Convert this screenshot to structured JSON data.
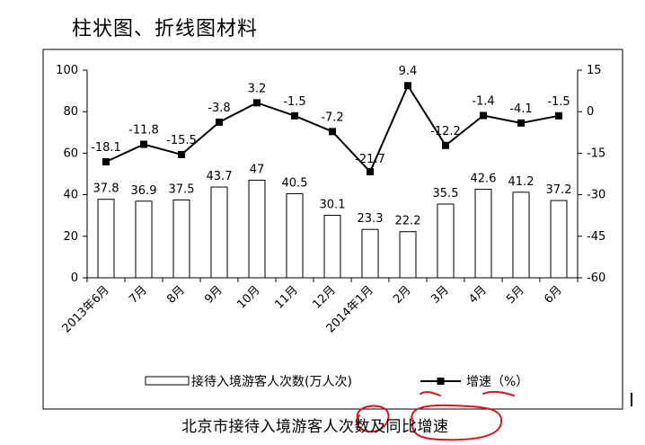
{
  "heading": "柱状图、折线图材料",
  "caption": "北京市接待入境游客人次数及同比增速",
  "chart_data": {
    "type": "bar+line",
    "categories": [
      "2013年6月",
      "7月",
      "8月",
      "9月",
      "10月",
      "11月",
      "12月",
      "2014年1月",
      "2月",
      "3月",
      "4月",
      "5月",
      "6月"
    ],
    "series": [
      {
        "name": "接待入境游客人次数(万人次)",
        "type": "bar",
        "values": [
          37.8,
          36.9,
          37.5,
          43.7,
          47,
          40.5,
          30.1,
          23.3,
          22.2,
          35.5,
          42.6,
          41.2,
          37.2
        ],
        "labels": [
          "37.8",
          "36.9",
          "37.5",
          "43.7",
          "47",
          "40.5",
          "30.1",
          "23.3",
          "22.2",
          "35.5",
          "42.6",
          "41.2",
          "37.2"
        ]
      },
      {
        "name": "增速（%）",
        "type": "line",
        "axis": "right",
        "values": [
          -18.1,
          -11.8,
          -15.5,
          -3.8,
          3.2,
          -1.5,
          -7.2,
          -21.7,
          9.4,
          -12.2,
          -1.4,
          -4.1,
          -1.5
        ],
        "labels": [
          "-18.1",
          "-11.8",
          "-15.5",
          "-3.8",
          "3.2",
          "-1.5",
          "-7.2",
          "-21.7",
          "9.4",
          "-12.2",
          "-1.4",
          "-4.1",
          "-1.5"
        ]
      }
    ],
    "left_axis": {
      "min": 0,
      "max": 100,
      "ticks": [
        "0",
        "20",
        "40",
        "60",
        "80",
        "100"
      ]
    },
    "right_axis": {
      "min": -60,
      "max": 15,
      "ticks": [
        "-60",
        "-45",
        "-30",
        "-15",
        "0",
        "15"
      ]
    },
    "legend": {
      "bar_label": "接待入境游客人次数(万人次)",
      "line_label": "增速（%）",
      "placement": "bottom"
    },
    "grid": false,
    "colors": {
      "bar_fill": "#ffffff",
      "bar_stroke": "#000000",
      "line": "#000000"
    }
  }
}
